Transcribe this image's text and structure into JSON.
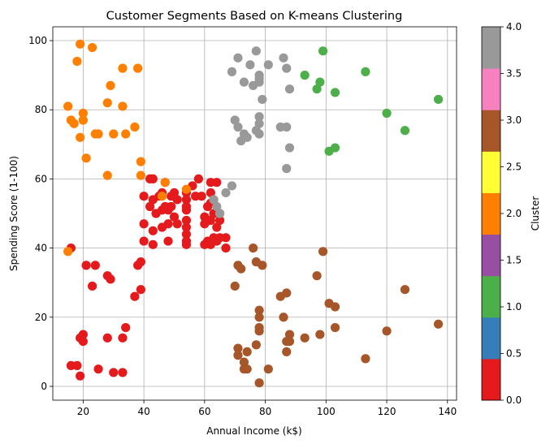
{
  "chart_data": {
    "type": "scatter",
    "title": "Customer Segments Based on K-means Clustering",
    "xlabel": "Annual Income (k$)",
    "ylabel": "Spending Score (1-100)",
    "xlim": [
      10,
      143
    ],
    "ylim": [
      -4,
      104
    ],
    "xticks": [
      20,
      40,
      60,
      80,
      100,
      120,
      140
    ],
    "yticks": [
      0,
      20,
      40,
      60,
      80,
      100
    ],
    "grid": true,
    "colorbar": {
      "label": "Cluster",
      "range": [
        0,
        4
      ],
      "ticks": [
        "0.0",
        "0.5",
        "1.0",
        "1.5",
        "2.0",
        "2.5",
        "3.0",
        "3.5",
        "4.0"
      ],
      "colors": [
        "#e41a1c",
        "#377eb8",
        "#4daf4a",
        "#984ea3",
        "#ff7f00",
        "#ffff33",
        "#a65628",
        "#f781bf",
        "#999999"
      ]
    },
    "series": [
      {
        "cluster": 0,
        "color": "#e41a1c",
        "points": [
          [
            16,
            6
          ],
          [
            18,
            6
          ],
          [
            19,
            3
          ],
          [
            19,
            14
          ],
          [
            20,
            15
          ],
          [
            20,
            13
          ],
          [
            21,
            35
          ],
          [
            16,
            40
          ],
          [
            23,
            29
          ],
          [
            24,
            35
          ],
          [
            25,
            5
          ],
          [
            28,
            14
          ],
          [
            28,
            32
          ],
          [
            29,
            31
          ],
          [
            30,
            4
          ],
          [
            33,
            4
          ],
          [
            33,
            14
          ],
          [
            34,
            17
          ],
          [
            37,
            26
          ],
          [
            38,
            35
          ],
          [
            39,
            36
          ],
          [
            39,
            28
          ],
          [
            40,
            55
          ],
          [
            40,
            47
          ],
          [
            40,
            42
          ],
          [
            42,
            52
          ],
          [
            42,
            60
          ],
          [
            43,
            60
          ],
          [
            43,
            54
          ],
          [
            43,
            45
          ],
          [
            43,
            41
          ],
          [
            44,
            50
          ],
          [
            45,
            55
          ],
          [
            46,
            56
          ],
          [
            46,
            51
          ],
          [
            46,
            46
          ],
          [
            47,
            52
          ],
          [
            47,
            59
          ],
          [
            48,
            51
          ],
          [
            48,
            47
          ],
          [
            48,
            42
          ],
          [
            49,
            55
          ],
          [
            49,
            52
          ],
          [
            50,
            56
          ],
          [
            50,
            49
          ],
          [
            51,
            54
          ],
          [
            51,
            47
          ],
          [
            54,
            56
          ],
          [
            54,
            54
          ],
          [
            54,
            52
          ],
          [
            54,
            51
          ],
          [
            54,
            48
          ],
          [
            54,
            46
          ],
          [
            54,
            44
          ],
          [
            54,
            42
          ],
          [
            54,
            41
          ],
          [
            56,
            58
          ],
          [
            57,
            55
          ],
          [
            58,
            60
          ],
          [
            59,
            55
          ],
          [
            60,
            49
          ],
          [
            60,
            47
          ],
          [
            60,
            41
          ],
          [
            61,
            42
          ],
          [
            61,
            52
          ],
          [
            62,
            59
          ],
          [
            62,
            56
          ],
          [
            62,
            53
          ],
          [
            62,
            48
          ],
          [
            62,
            41
          ],
          [
            63,
            43
          ],
          [
            63,
            54
          ],
          [
            63,
            50
          ],
          [
            64,
            59
          ],
          [
            64,
            46
          ],
          [
            64,
            42
          ],
          [
            65,
            48
          ],
          [
            65,
            43
          ],
          [
            65,
            50
          ],
          [
            67,
            43
          ],
          [
            67,
            40
          ]
        ]
      },
      {
        "cluster": 1,
        "color": "#4daf4a",
        "points": [
          [
            93,
            90
          ],
          [
            97,
            86
          ],
          [
            98,
            88
          ],
          [
            99,
            97
          ],
          [
            101,
            68
          ],
          [
            103,
            69
          ],
          [
            103,
            85
          ],
          [
            113,
            91
          ],
          [
            120,
            79
          ],
          [
            126,
            74
          ],
          [
            137,
            83
          ]
        ]
      },
      {
        "cluster": 2,
        "color": "#ff7f00",
        "points": [
          [
            15,
            39
          ],
          [
            15,
            81
          ],
          [
            16,
            77
          ],
          [
            17,
            76
          ],
          [
            18,
            94
          ],
          [
            19,
            99
          ],
          [
            19,
            72
          ],
          [
            20,
            77
          ],
          [
            20,
            79
          ],
          [
            21,
            66
          ],
          [
            23,
            98
          ],
          [
            24,
            73
          ],
          [
            25,
            73
          ],
          [
            28,
            82
          ],
          [
            28,
            61
          ],
          [
            29,
            87
          ],
          [
            30,
            73
          ],
          [
            33,
            92
          ],
          [
            33,
            81
          ],
          [
            34,
            73
          ],
          [
            37,
            75
          ],
          [
            38,
            92
          ],
          [
            39,
            65
          ],
          [
            39,
            61
          ],
          [
            46,
            55
          ],
          [
            47,
            59
          ],
          [
            54,
            57
          ]
        ]
      },
      {
        "cluster": 3,
        "color": "#a65628",
        "points": [
          [
            70,
            29
          ],
          [
            71,
            35
          ],
          [
            71,
            11
          ],
          [
            71,
            9
          ],
          [
            72,
            34
          ],
          [
            73,
            5
          ],
          [
            73,
            7
          ],
          [
            74,
            10
          ],
          [
            74,
            5
          ],
          [
            76,
            40
          ],
          [
            77,
            36
          ],
          [
            77,
            12
          ],
          [
            78,
            22
          ],
          [
            78,
            20
          ],
          [
            78,
            17
          ],
          [
            78,
            16
          ],
          [
            78,
            1
          ],
          [
            79,
            35
          ],
          [
            81,
            5
          ],
          [
            85,
            26
          ],
          [
            86,
            20
          ],
          [
            87,
            27
          ],
          [
            87,
            13
          ],
          [
            87,
            10
          ],
          [
            88,
            15
          ],
          [
            88,
            13
          ],
          [
            93,
            14
          ],
          [
            97,
            32
          ],
          [
            98,
            15
          ],
          [
            99,
            39
          ],
          [
            101,
            24
          ],
          [
            103,
            17
          ],
          [
            103,
            23
          ],
          [
            113,
            8
          ],
          [
            120,
            16
          ],
          [
            126,
            28
          ],
          [
            137,
            18
          ]
        ]
      },
      {
        "cluster": 4,
        "color": "#999999",
        "points": [
          [
            63,
            54
          ],
          [
            64,
            52
          ],
          [
            65,
            50
          ],
          [
            67,
            56
          ],
          [
            69,
            58
          ],
          [
            69,
            91
          ],
          [
            70,
            77
          ],
          [
            71,
            75
          ],
          [
            71,
            95
          ],
          [
            72,
            71
          ],
          [
            73,
            88
          ],
          [
            73,
            73
          ],
          [
            74,
            72
          ],
          [
            75,
            93
          ],
          [
            76,
            87
          ],
          [
            77,
            97
          ],
          [
            77,
            74
          ],
          [
            78,
            90
          ],
          [
            78,
            89
          ],
          [
            78,
            88
          ],
          [
            78,
            78
          ],
          [
            78,
            76
          ],
          [
            78,
            73
          ],
          [
            79,
            83
          ],
          [
            81,
            93
          ],
          [
            85,
            75
          ],
          [
            86,
            95
          ],
          [
            87,
            75
          ],
          [
            87,
            92
          ],
          [
            87,
            63
          ],
          [
            88,
            69
          ],
          [
            88,
            86
          ]
        ]
      }
    ]
  }
}
